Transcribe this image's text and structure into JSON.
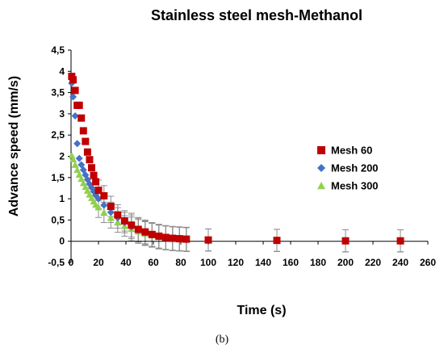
{
  "caption": "(b)",
  "chart_data": {
    "type": "scatter",
    "title": "Stainless steel mesh-Methanol",
    "xlabel": "Time (s)",
    "ylabel": "Advance speed (mm/s)",
    "xlim": [
      0,
      260
    ],
    "ylim": [
      -0.5,
      4.5
    ],
    "x_ticks": [
      "0",
      "20",
      "40",
      "60",
      "80",
      "100",
      "120",
      "140",
      "160",
      "180",
      "200",
      "220",
      "240",
      "260"
    ],
    "y_ticks": [
      "-0,5",
      "0",
      "0,5",
      "1",
      "1,5",
      "2",
      "2,5",
      "3",
      "3,5",
      "4",
      "4,5"
    ],
    "grid": false,
    "legend_position": "right",
    "series": [
      {
        "name": "Mesh 60",
        "marker": "square",
        "color": "#c00000",
        "points": [
          [
            0.5,
            3.88
          ],
          [
            1.5,
            3.8
          ],
          [
            3,
            3.55
          ],
          [
            4.5,
            3.2
          ],
          [
            6,
            3.2
          ],
          [
            7.5,
            2.9
          ],
          [
            9,
            2.6
          ],
          [
            10.5,
            2.35
          ],
          [
            12,
            2.1
          ],
          [
            13.5,
            1.92
          ],
          [
            15,
            1.73
          ],
          [
            16.5,
            1.55
          ],
          [
            18,
            1.4
          ],
          [
            20,
            1.2
          ],
          [
            24,
            1.07
          ],
          [
            29,
            0.82
          ],
          [
            34,
            0.62
          ],
          [
            39,
            0.48
          ],
          [
            44,
            0.38
          ],
          [
            49,
            0.28
          ],
          [
            54,
            0.22
          ],
          [
            59,
            0.16
          ],
          [
            64,
            0.12
          ],
          [
            69,
            0.09
          ],
          [
            74,
            0.07
          ],
          [
            79,
            0.06
          ],
          [
            84,
            0.05
          ],
          [
            100,
            0.03
          ],
          [
            150,
            0.02
          ],
          [
            200,
            0.01
          ],
          [
            240,
            0.01
          ]
        ]
      },
      {
        "name": "Mesh 200",
        "marker": "diamond",
        "color": "#4472c4",
        "points": [
          [
            0.5,
            3.72
          ],
          [
            1.5,
            3.4
          ],
          [
            3,
            2.95
          ],
          [
            4.5,
            2.3
          ],
          [
            6,
            1.95
          ],
          [
            7.5,
            1.8
          ],
          [
            9,
            1.68
          ],
          [
            10.5,
            1.56
          ],
          [
            12,
            1.45
          ],
          [
            13.5,
            1.35
          ],
          [
            15,
            1.26
          ],
          [
            16.5,
            1.17
          ],
          [
            18,
            1.08
          ],
          [
            20,
            1.0
          ],
          [
            24,
            0.85
          ],
          [
            29,
            0.68
          ],
          [
            34,
            0.55
          ],
          [
            39,
            0.44
          ],
          [
            44,
            0.34
          ],
          [
            49,
            0.26
          ],
          [
            54,
            0.2
          ],
          [
            59,
            0.15
          ],
          [
            64,
            0.11
          ],
          [
            69,
            0.08
          ],
          [
            74,
            0.06
          ],
          [
            79,
            0.05
          ],
          [
            84,
            0.04
          ],
          [
            100,
            0.03
          ],
          [
            150,
            0.02
          ],
          [
            200,
            0.01
          ],
          [
            240,
            0.01
          ]
        ]
      },
      {
        "name": "Mesh 300",
        "marker": "triangle",
        "color": "#92d050",
        "points": [
          [
            0.5,
            2.02
          ],
          [
            1.5,
            1.93
          ],
          [
            3,
            1.8
          ],
          [
            4.5,
            1.68
          ],
          [
            6,
            1.57
          ],
          [
            7.5,
            1.47
          ],
          [
            9,
            1.37
          ],
          [
            10.5,
            1.28
          ],
          [
            12,
            1.19
          ],
          [
            13.5,
            1.1
          ],
          [
            15,
            1.02
          ],
          [
            16.5,
            0.94
          ],
          [
            18,
            0.86
          ],
          [
            20,
            0.8
          ],
          [
            24,
            0.68
          ],
          [
            29,
            0.55
          ],
          [
            34,
            0.45
          ],
          [
            39,
            0.36
          ],
          [
            44,
            0.29
          ],
          [
            49,
            0.23
          ],
          [
            54,
            0.18
          ],
          [
            59,
            0.14
          ],
          [
            64,
            0.1
          ],
          [
            69,
            0.08
          ],
          [
            74,
            0.06
          ],
          [
            79,
            0.05
          ],
          [
            84,
            0.04
          ],
          [
            100,
            0.03
          ],
          [
            150,
            0.02
          ],
          [
            200,
            0.01
          ],
          [
            240,
            0.01
          ]
        ]
      }
    ]
  }
}
